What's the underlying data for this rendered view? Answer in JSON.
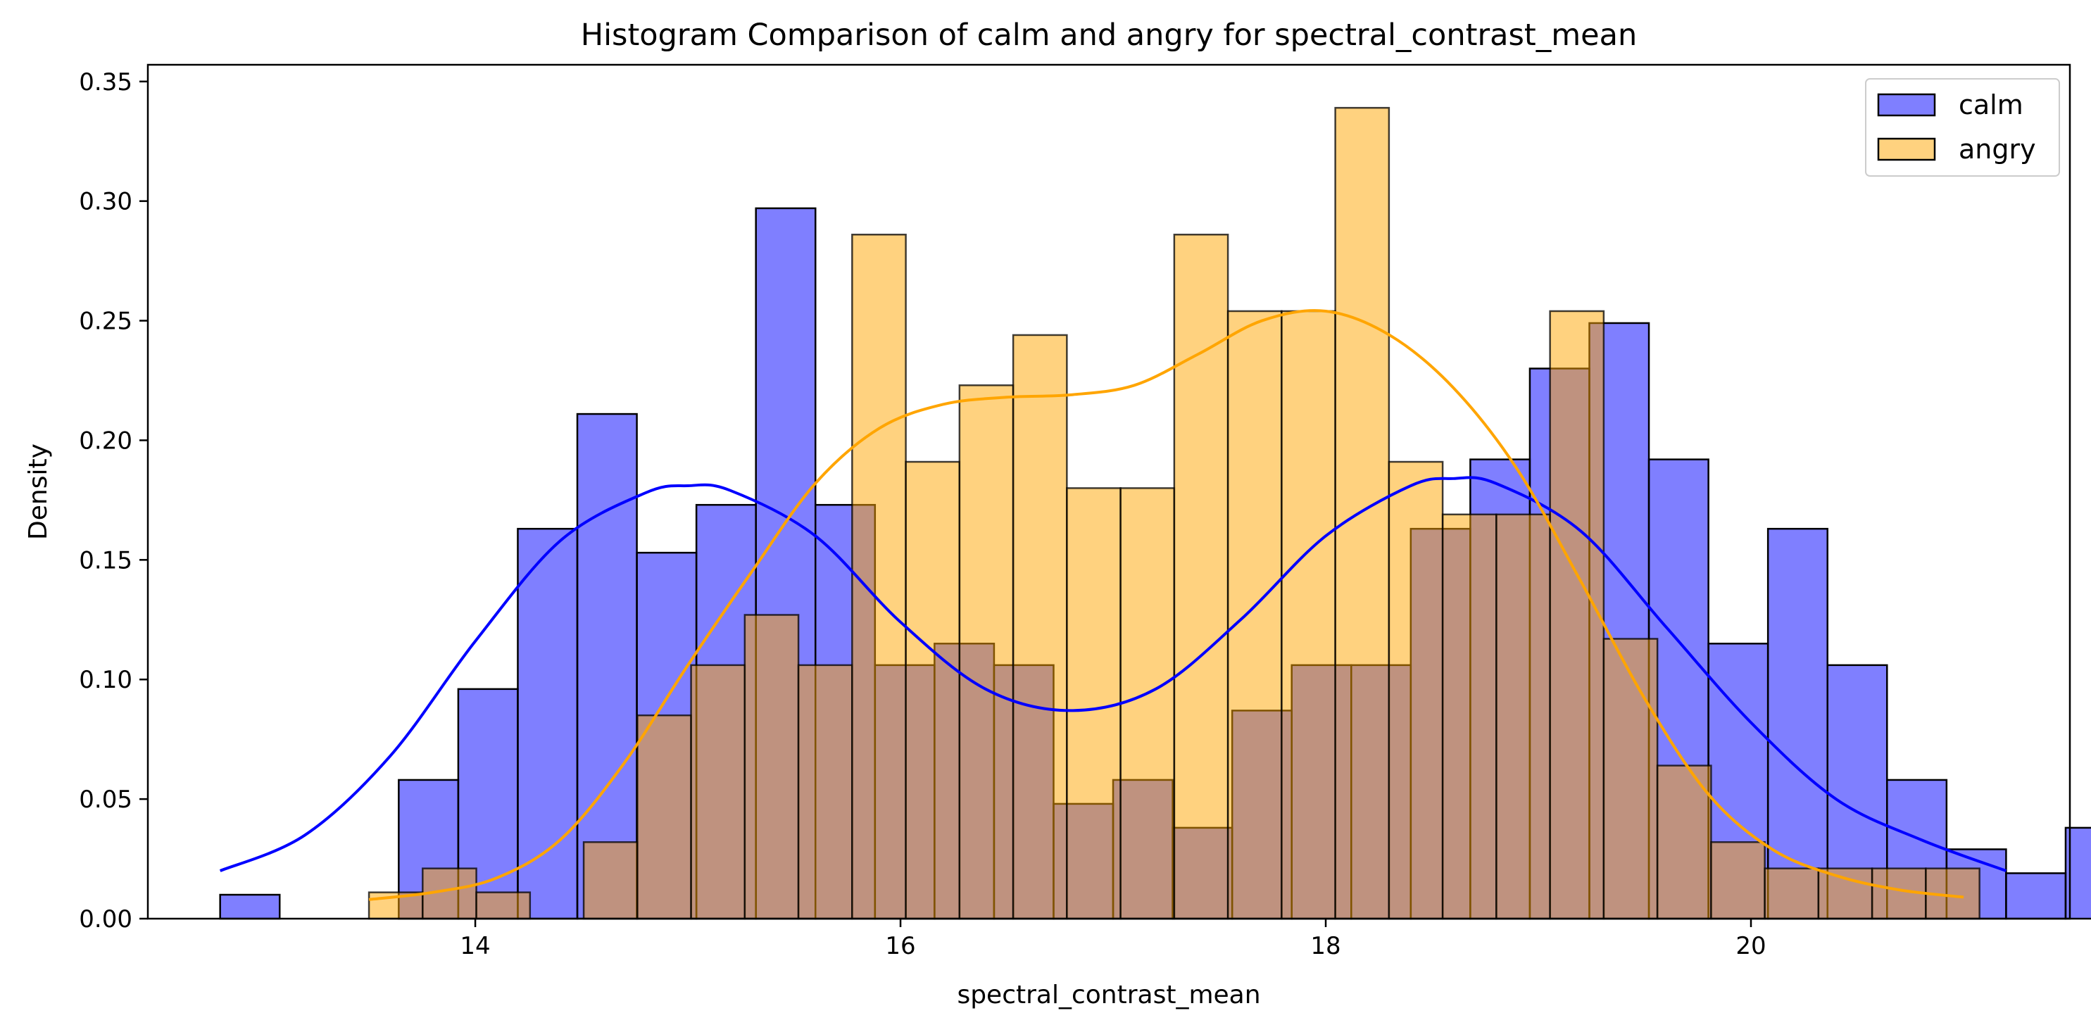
{
  "chart_data": {
    "type": "bar",
    "subtype": "overlaid-histogram-with-kde",
    "title": "Histogram Comparison of calm and angry for spectral_contrast_mean",
    "xlabel": "spectral_contrast_mean",
    "ylabel": "Density",
    "xlim": [
      12.46,
      21.5
    ],
    "ylim": [
      0,
      0.357
    ],
    "xticks": [
      14,
      16,
      18,
      20
    ],
    "yticks": [
      0.0,
      0.05,
      0.1,
      0.15,
      0.2,
      0.25,
      0.3,
      0.35
    ],
    "ytick_labels": [
      "0.00",
      "0.05",
      "0.10",
      "0.15",
      "0.20",
      "0.25",
      "0.30",
      "0.35"
    ],
    "xtick_labels": [
      "14",
      "16",
      "18",
      "20"
    ],
    "grid": false,
    "legend_position": "top-right",
    "series": [
      {
        "name": "calm",
        "color": "#0000ff",
        "fill_color": "#8080ff",
        "bins": {
          "start": 12.8,
          "width": 0.28,
          "values": [
            0.01,
            0.0,
            0.0,
            0.058,
            0.096,
            0.163,
            0.211,
            0.153,
            0.173,
            0.297,
            0.173,
            0.106,
            0.115,
            0.106,
            0.048,
            0.058,
            0.038,
            0.087,
            0.106,
            0.106,
            0.163,
            0.192,
            0.23,
            0.249,
            0.192,
            0.115,
            0.163,
            0.106,
            0.058,
            0.029,
            0.019,
            0.038
          ]
        },
        "kde": {
          "x": [
            12.8,
            13.2,
            13.6,
            14.0,
            14.4,
            14.8,
            15.0,
            15.2,
            15.6,
            16.0,
            16.4,
            16.8,
            17.2,
            17.6,
            18.0,
            18.4,
            18.6,
            18.8,
            19.2,
            19.6,
            20.0,
            20.4,
            20.8,
            21.2
          ],
          "y": [
            0.02,
            0.035,
            0.068,
            0.116,
            0.158,
            0.178,
            0.181,
            0.179,
            0.16,
            0.124,
            0.096,
            0.087,
            0.096,
            0.125,
            0.16,
            0.181,
            0.184,
            0.182,
            0.162,
            0.122,
            0.082,
            0.05,
            0.033,
            0.02
          ]
        }
      },
      {
        "name": "angry",
        "color": "#ffa500",
        "fill_color": "#ffd27f",
        "bins": {
          "start": 13.5,
          "width": 0.2525,
          "values": [
            0.011,
            0.021,
            0.011,
            0.0,
            0.032,
            0.085,
            0.106,
            0.127,
            0.106,
            0.286,
            0.191,
            0.223,
            0.244,
            0.18,
            0.18,
            0.286,
            0.254,
            0.254,
            0.339,
            0.191,
            0.169,
            0.169,
            0.254,
            0.117,
            0.064,
            0.032,
            0.021,
            0.021,
            0.021,
            0.021
          ]
        },
        "kde": {
          "x": [
            13.5,
            13.8,
            14.1,
            14.4,
            14.7,
            15.0,
            15.3,
            15.6,
            15.9,
            16.2,
            16.5,
            16.8,
            17.1,
            17.4,
            17.7,
            18.0,
            18.3,
            18.6,
            18.9,
            19.2,
            19.5,
            19.8,
            20.1,
            20.4,
            20.7,
            21.0
          ],
          "y": [
            0.008,
            0.011,
            0.017,
            0.033,
            0.065,
            0.106,
            0.145,
            0.182,
            0.205,
            0.215,
            0.218,
            0.219,
            0.223,
            0.236,
            0.25,
            0.254,
            0.244,
            0.222,
            0.188,
            0.141,
            0.092,
            0.052,
            0.029,
            0.018,
            0.012,
            0.009
          ]
        }
      }
    ]
  }
}
